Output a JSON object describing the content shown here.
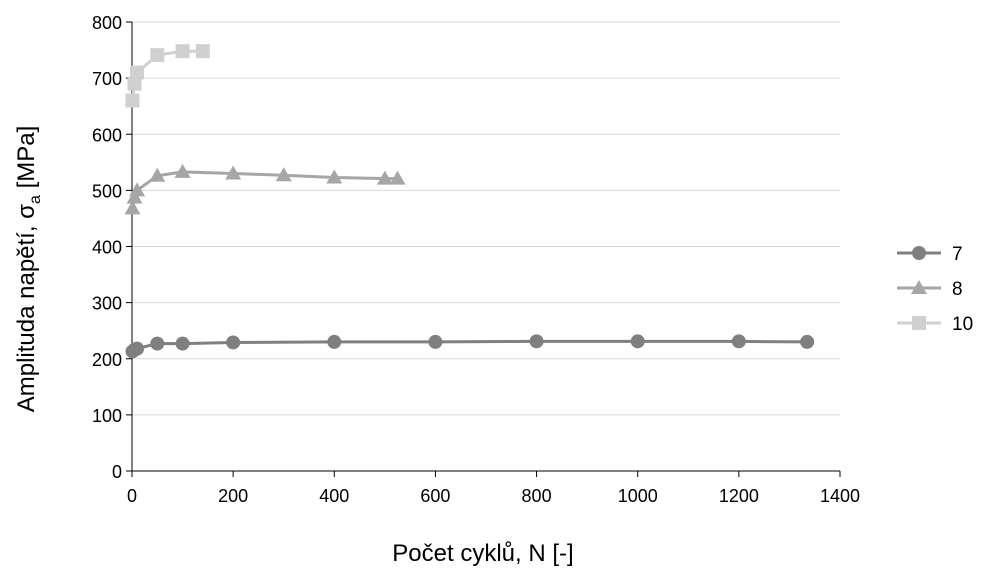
{
  "chart_data": {
    "type": "line",
    "title": "",
    "xlabel": "Počet cyklů, N [-]",
    "ylabel_main": "Amplituda napětí, σ",
    "ylabel_sub": "a",
    "ylabel_unit": " [MPa]",
    "xlim": [
      0,
      1400
    ],
    "ylim": [
      0,
      800
    ],
    "x_ticks": [
      0,
      200,
      400,
      600,
      800,
      1000,
      1200,
      1400
    ],
    "y_ticks": [
      0,
      100,
      200,
      300,
      400,
      500,
      600,
      700,
      800
    ],
    "grid": "horizontal",
    "legend_position": "right",
    "series": [
      {
        "name": "7",
        "color": "#7f7f7f",
        "marker": "circle",
        "x": [
          1,
          5,
          10,
          50,
          100,
          200,
          400,
          600,
          800,
          1000,
          1200,
          1335
        ],
        "y": [
          213,
          216,
          218,
          227,
          227,
          229,
          230,
          230,
          231,
          231,
          231,
          230
        ]
      },
      {
        "name": "8",
        "color": "#a6a6a6",
        "marker": "triangle",
        "x": [
          1,
          5,
          10,
          50,
          100,
          200,
          300,
          400,
          500,
          525
        ],
        "y": [
          468,
          487,
          500,
          526,
          533,
          530,
          527,
          523,
          521,
          521
        ]
      },
      {
        "name": "10",
        "color": "#d0d0d0",
        "marker": "square",
        "x": [
          1,
          5,
          10,
          50,
          100,
          140
        ],
        "y": [
          660,
          690,
          710,
          741,
          748,
          748
        ]
      }
    ]
  }
}
